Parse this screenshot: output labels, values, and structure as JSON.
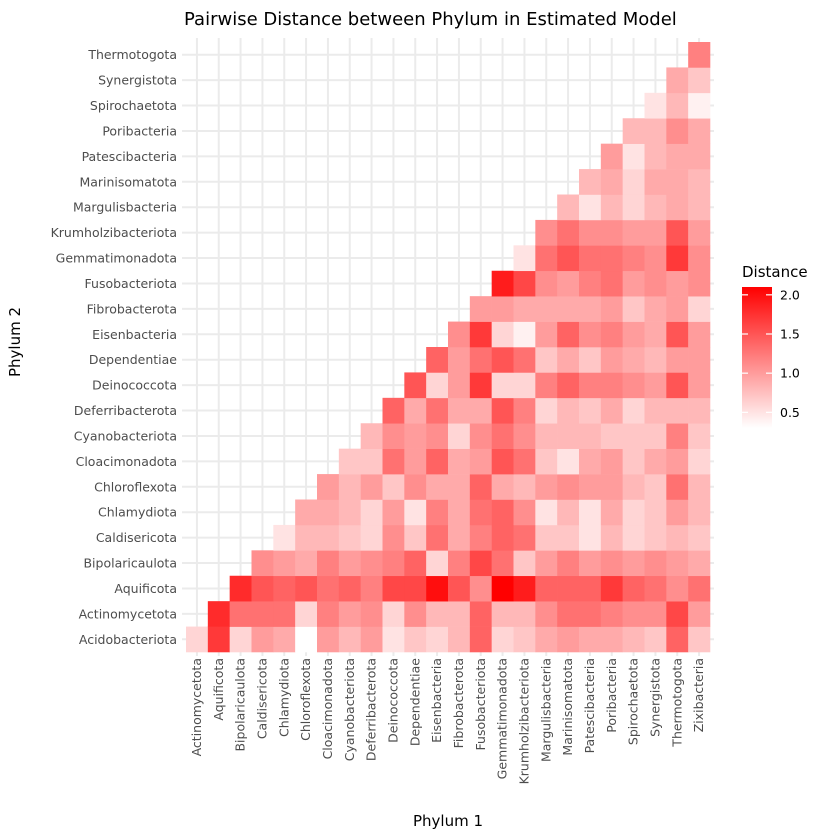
{
  "chart_data": {
    "type": "heatmap",
    "title": "Pairwise Distance between Phylum in Estimated Model",
    "xlabel": "Phylum 1",
    "ylabel": "Phylum 2",
    "x_categories": [
      "Actinomycetota",
      "Aquificota",
      "Bipolaricaulota",
      "Caldisericota",
      "Chlamydiota",
      "Chloroflexota",
      "Cloacimonadota",
      "Cyanobacteriota",
      "Deferribacterota",
      "Deinococcota",
      "Dependentiae",
      "Eisenbacteria",
      "Fibrobacterota",
      "Fusobacteriota",
      "Gemmatimonadota",
      "Krumholzibacteriota",
      "Margulisbacteria",
      "Marinisomatota",
      "Patescibacteria",
      "Poribacteria",
      "Spirochaetota",
      "Synergistota",
      "Thermotogota",
      "Zixibacteria"
    ],
    "y_categories": [
      "Acidobacteriota",
      "Actinomycetota",
      "Aquificota",
      "Bipolaricaulota",
      "Caldisericota",
      "Chlamydiota",
      "Chloroflexota",
      "Cloacimonadota",
      "Cyanobacteriota",
      "Deferribacterota",
      "Deinococcota",
      "Dependentiae",
      "Eisenbacteria",
      "Fibrobacterota",
      "Fusobacteriota",
      "Gemmatimonadota",
      "Krumholzibacteriota",
      "Margulisbacteria",
      "Marinisomatota",
      "Patescibacteria",
      "Poribacteria",
      "Spirochaetota",
      "Synergistota",
      "Thermotogota"
    ],
    "values_note_rows": "values[i] = row for y_categories[i]; cells for x index > i are empty (null)",
    "values": [
      [
        0.6,
        1.7,
        0.6,
        1.0,
        0.9,
        0.3,
        1.0,
        0.8,
        1.0,
        0.5,
        0.7,
        0.6,
        0.8,
        1.4,
        0.6,
        0.7,
        0.9,
        1.0,
        0.9,
        0.9,
        0.8,
        0.7,
        1.4,
        0.7
      ],
      [
        null,
        1.8,
        1.3,
        1.3,
        1.3,
        0.6,
        1.2,
        1.0,
        1.1,
        0.6,
        1.1,
        0.8,
        0.8,
        1.4,
        0.8,
        0.8,
        1.1,
        1.3,
        1.3,
        1.2,
        1.1,
        1.1,
        1.6,
        1.0
      ],
      [
        null,
        null,
        1.8,
        1.5,
        1.4,
        1.5,
        1.3,
        1.4,
        1.2,
        1.6,
        1.6,
        2.0,
        1.5,
        1.1,
        2.1,
        1.9,
        1.4,
        1.4,
        1.4,
        1.7,
        1.4,
        1.3,
        1.1,
        1.3
      ],
      [
        null,
        null,
        null,
        1.1,
        1.0,
        0.9,
        1.2,
        1.0,
        1.1,
        1.2,
        1.4,
        0.6,
        1.2,
        1.6,
        1.3,
        0.7,
        1.0,
        1.2,
        1.0,
        1.1,
        1.0,
        1.1,
        1.0,
        0.9
      ],
      [
        null,
        null,
        null,
        null,
        0.5,
        0.8,
        0.8,
        0.7,
        0.6,
        1.1,
        0.7,
        1.3,
        0.9,
        1.2,
        1.4,
        1.3,
        0.7,
        0.7,
        0.5,
        0.8,
        0.6,
        0.7,
        0.8,
        0.7
      ],
      [
        null,
        null,
        null,
        null,
        null,
        0.9,
        0.9,
        0.8,
        0.6,
        1.0,
        0.5,
        1.2,
        0.9,
        1.3,
        1.4,
        1.1,
        0.5,
        0.8,
        0.5,
        0.9,
        0.6,
        0.7,
        1.0,
        0.8
      ],
      [
        null,
        null,
        null,
        null,
        null,
        null,
        1.0,
        0.8,
        1.0,
        0.7,
        1.1,
        0.9,
        0.9,
        1.4,
        0.9,
        0.8,
        1.0,
        1.1,
        1.0,
        1.0,
        0.8,
        0.7,
        1.3,
        0.8
      ],
      [
        null,
        null,
        null,
        null,
        null,
        null,
        null,
        0.7,
        0.7,
        1.3,
        1.0,
        1.4,
        0.9,
        1.0,
        1.5,
        1.3,
        0.7,
        0.5,
        0.9,
        1.0,
        0.7,
        0.9,
        1.0,
        0.6
      ],
      [
        null,
        null,
        null,
        null,
        null,
        null,
        null,
        null,
        0.8,
        1.1,
        1.0,
        1.1,
        0.6,
        1.1,
        1.3,
        1.1,
        0.8,
        0.8,
        0.8,
        0.7,
        0.7,
        0.7,
        1.2,
        0.7
      ],
      [
        null,
        null,
        null,
        null,
        null,
        null,
        null,
        null,
        null,
        1.4,
        0.9,
        1.3,
        0.9,
        0.9,
        1.5,
        1.2,
        0.6,
        0.8,
        0.7,
        0.9,
        0.6,
        0.8,
        0.8,
        0.8
      ],
      [
        null,
        null,
        null,
        null,
        null,
        null,
        null,
        null,
        null,
        null,
        1.5,
        0.6,
        1.0,
        1.7,
        0.6,
        0.6,
        1.2,
        1.4,
        1.2,
        1.2,
        1.1,
        1.0,
        1.5,
        1.0
      ],
      [
        null,
        null,
        null,
        null,
        null,
        null,
        null,
        null,
        null,
        null,
        null,
        1.4,
        1.0,
        1.3,
        1.5,
        1.3,
        0.7,
        0.9,
        0.7,
        1.0,
        0.9,
        0.8,
        1.0,
        1.0
      ],
      [
        null,
        null,
        null,
        null,
        null,
        null,
        null,
        null,
        null,
        null,
        null,
        null,
        1.1,
        1.7,
        0.6,
        0.4,
        1.0,
        1.4,
        1.1,
        1.2,
        1.0,
        0.9,
        1.5,
        1.0
      ],
      [
        null,
        null,
        null,
        null,
        null,
        null,
        null,
        null,
        null,
        null,
        null,
        null,
        null,
        1.0,
        1.0,
        0.9,
        0.9,
        0.9,
        0.9,
        1.0,
        0.7,
        0.9,
        1.0,
        0.6
      ],
      [
        null,
        null,
        null,
        null,
        null,
        null,
        null,
        null,
        null,
        null,
        null,
        null,
        null,
        null,
        1.9,
        1.6,
        1.1,
        1.0,
        1.2,
        1.3,
        1.0,
        1.1,
        1.0,
        1.1
      ],
      [
        null,
        null,
        null,
        null,
        null,
        null,
        null,
        null,
        null,
        null,
        null,
        null,
        null,
        null,
        null,
        0.5,
        1.3,
        1.5,
        1.3,
        1.3,
        1.2,
        1.1,
        1.7,
        1.1
      ],
      [
        null,
        null,
        null,
        null,
        null,
        null,
        null,
        null,
        null,
        null,
        null,
        null,
        null,
        null,
        null,
        null,
        1.1,
        1.3,
        1.1,
        1.1,
        1.0,
        1.0,
        1.5,
        1.0
      ],
      [
        null,
        null,
        null,
        null,
        null,
        null,
        null,
        null,
        null,
        null,
        null,
        null,
        null,
        null,
        null,
        null,
        null,
        0.8,
        0.5,
        0.8,
        0.6,
        0.8,
        0.9,
        0.8
      ],
      [
        null,
        null,
        null,
        null,
        null,
        null,
        null,
        null,
        null,
        null,
        null,
        null,
        null,
        null,
        null,
        null,
        null,
        null,
        0.8,
        0.9,
        0.6,
        0.9,
        0.9,
        0.8
      ],
      [
        null,
        null,
        null,
        null,
        null,
        null,
        null,
        null,
        null,
        null,
        null,
        null,
        null,
        null,
        null,
        null,
        null,
        null,
        null,
        1.0,
        0.5,
        0.8,
        0.9,
        0.9
      ],
      [
        null,
        null,
        null,
        null,
        null,
        null,
        null,
        null,
        null,
        null,
        null,
        null,
        null,
        null,
        null,
        null,
        null,
        null,
        null,
        null,
        0.8,
        0.8,
        1.1,
        0.9
      ],
      [
        null,
        null,
        null,
        null,
        null,
        null,
        null,
        null,
        null,
        null,
        null,
        null,
        null,
        null,
        null,
        null,
        null,
        null,
        null,
        null,
        null,
        0.5,
        0.8,
        0.4
      ],
      [
        null,
        null,
        null,
        null,
        null,
        null,
        null,
        null,
        null,
        null,
        null,
        null,
        null,
        null,
        null,
        null,
        null,
        null,
        null,
        null,
        null,
        null,
        0.9,
        0.7
      ],
      [
        null,
        null,
        null,
        null,
        null,
        null,
        null,
        null,
        null,
        null,
        null,
        null,
        null,
        null,
        null,
        null,
        null,
        null,
        null,
        null,
        null,
        null,
        null,
        1.2
      ]
    ],
    "color_scale": {
      "low": "#ffffff",
      "high": "#ff0000",
      "min": 0.3,
      "max": 2.1
    },
    "legend": {
      "title": "Distance",
      "ticks": [
        "0.5",
        "1.0",
        "1.5",
        "2.0"
      ],
      "tick_values": [
        0.5,
        1.0,
        1.5,
        2.0
      ],
      "position": "right"
    },
    "grid": true
  }
}
